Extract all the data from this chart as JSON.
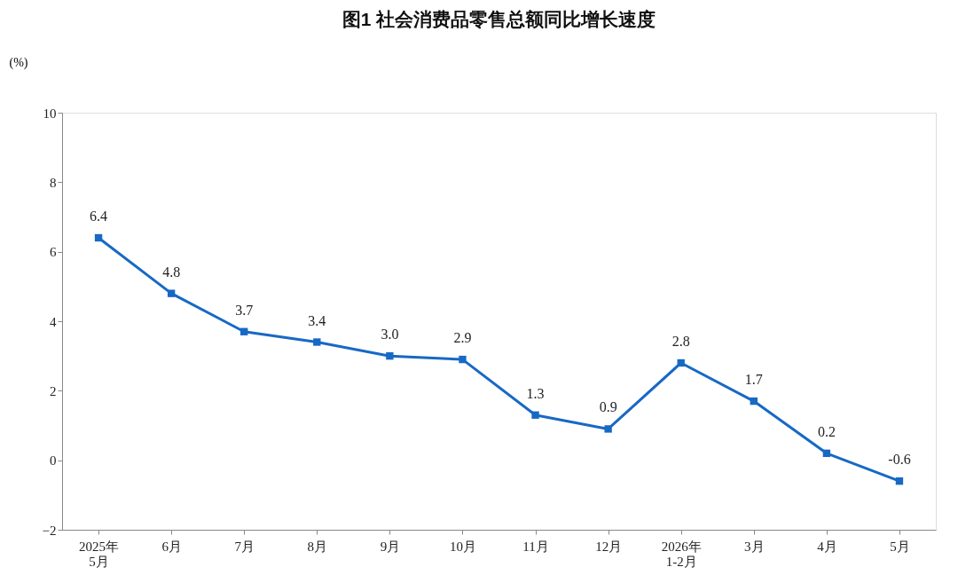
{
  "chart_data": {
    "type": "line",
    "title": "图1  社会消费品零售总额同比增长速度",
    "ylabel": "(%)",
    "categories": [
      "2025年\n5月",
      "6月",
      "7月",
      "8月",
      "9月",
      "10月",
      "11月",
      "12月",
      "2026年\n1-2月",
      "3月",
      "4月",
      "5月"
    ],
    "series": [
      {
        "color": "#1769c4",
        "values": [
          6.4,
          4.8,
          3.7,
          3.4,
          3.0,
          2.9,
          1.3,
          0.9,
          2.8,
          1.7,
          0.2,
          -0.6
        ]
      }
    ],
    "ylim": [
      -2,
      10
    ],
    "yticks": [
      -2,
      0,
      2,
      4,
      6,
      8,
      10
    ],
    "value_labels": [
      "6.4",
      "4.8",
      "3.7",
      "3.4",
      "3.0",
      "2.9",
      "1.3",
      "0.9",
      "2.8",
      "1.7",
      "0.2",
      "-0.6"
    ],
    "marker": "square",
    "line_style": "solid",
    "grid": false
  }
}
